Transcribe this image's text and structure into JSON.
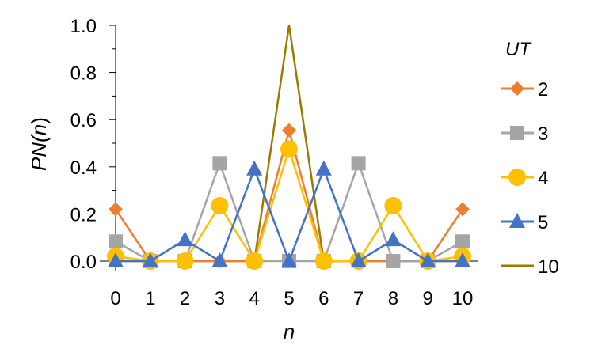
{
  "chart_data": {
    "type": "line",
    "x": [
      0,
      1,
      2,
      3,
      4,
      5,
      6,
      7,
      8,
      9,
      10
    ],
    "xticks": [
      "0",
      "1",
      "2",
      "3",
      "4",
      "5",
      "6",
      "7",
      "8",
      "9",
      "10"
    ],
    "yticks": [
      "0.0",
      "0.2",
      "0.4",
      "0.6",
      "0.8",
      "1.0"
    ],
    "xlabel": "n",
    "ylabel_prefix": "PN(",
    "ylabel_var": "n",
    "ylabel_suffix": ")",
    "xlim": [
      0,
      10
    ],
    "ylim": [
      0,
      1.0
    ],
    "grid": false,
    "legend_placement": "right",
    "legend_title": "UT",
    "series": [
      {
        "name": "2",
        "color": "#ED7D31",
        "marker": "diamond",
        "values": [
          0.22,
          0.0,
          0.0,
          0.0,
          0.0,
          0.555,
          0.0,
          0.0,
          0.0,
          0.0,
          0.22
        ]
      },
      {
        "name": "3",
        "color": "#A5A5A5",
        "marker": "square",
        "values": [
          0.083,
          0.0,
          0.0,
          0.415,
          0.0,
          0.0,
          0.0,
          0.415,
          0.0,
          0.0,
          0.083
        ]
      },
      {
        "name": "4",
        "color": "#FFC000",
        "marker": "circle",
        "values": [
          0.02,
          0.0,
          0.0,
          0.235,
          0.0,
          0.475,
          0.0,
          0.0,
          0.235,
          0.0,
          0.02
        ]
      },
      {
        "name": "5",
        "color": "#4472C4",
        "marker": "triangle",
        "values": [
          0.0,
          0.0,
          0.09,
          0.0,
          0.39,
          0.0,
          0.39,
          0.0,
          0.09,
          0.0,
          0.0
        ]
      },
      {
        "name": "10",
        "color": "#9C7A00",
        "marker": "none",
        "values": [
          0.0,
          0.0,
          0.0,
          0.0,
          0.0,
          1.0,
          0.0,
          0.0,
          0.0,
          0.0,
          0.0
        ]
      }
    ]
  }
}
